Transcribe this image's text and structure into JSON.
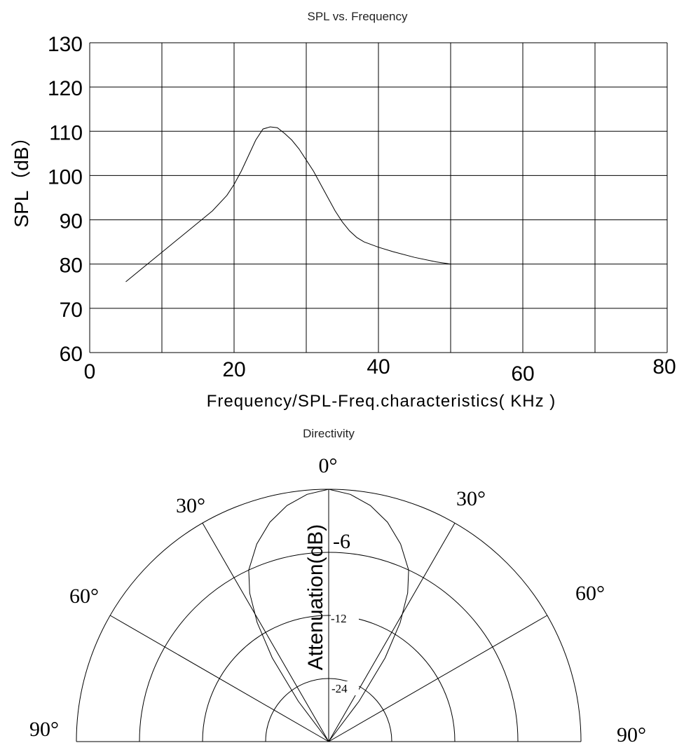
{
  "chart_data": [
    {
      "type": "line",
      "title": "SPL vs. Frequency",
      "xlabel": "Frequency/SPL-Freq.characteristics( KHz )",
      "ylabel": "SPL（dB）",
      "xlim": [
        0,
        80
      ],
      "ylim": [
        60,
        130
      ],
      "xticks": [
        "0",
        "20",
        "40",
        "60",
        "80"
      ],
      "yticks": [
        "60",
        "70",
        "80",
        "90",
        "100",
        "110",
        "120",
        "130"
      ],
      "grid": true,
      "series": [
        {
          "x": [
            5,
            8,
            11,
            14,
            17,
            19,
            20,
            21,
            22,
            23,
            24,
            25,
            26,
            27,
            28,
            29,
            30,
            31,
            32,
            33,
            34,
            35,
            36,
            37,
            38,
            40,
            42,
            45,
            48,
            50
          ],
          "values": [
            76,
            80,
            84,
            88,
            92,
            95.5,
            98,
            101,
            104.5,
            108,
            110.5,
            111,
            110.8,
            109.5,
            108,
            106,
            103.5,
            101,
            98,
            95,
            92,
            89.5,
            87.5,
            86,
            85,
            83.8,
            82.8,
            81.5,
            80.5,
            80
          ]
        }
      ]
    },
    {
      "type": "polar",
      "title": "Directivity",
      "axis_label": "Attenuation(dB)",
      "angle_labels": {
        "top": "0°",
        "upper_left": "30°",
        "upper_right": "30°",
        "mid_left": "60°",
        "mid_right": "60°",
        "bottom_left": "90°",
        "bottom_right": "90°"
      },
      "ring_labels": [
        "-6",
        "-12",
        "-24"
      ],
      "angle_lines_deg": [
        0,
        30,
        60,
        90
      ],
      "pattern": {
        "angles_deg": [
          0,
          5,
          10,
          15,
          20,
          25,
          28,
          31,
          34,
          37,
          40
        ],
        "attenuation_db": [
          0,
          -0.5,
          -1.5,
          -3,
          -5,
          -7.5,
          -10,
          -13.5,
          -18,
          -24,
          -30
        ]
      }
    }
  ]
}
